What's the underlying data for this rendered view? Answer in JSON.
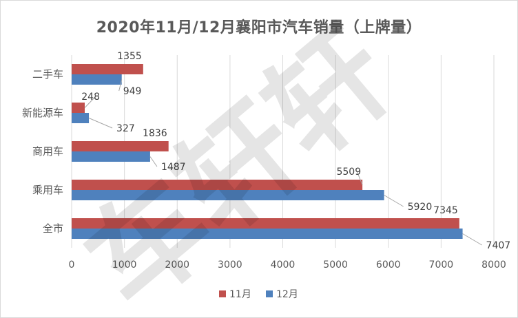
{
  "chart_data": {
    "type": "bar",
    "orientation": "horizontal",
    "title": "2020年11月/12月襄阳市汽车销量（上牌量）",
    "categories": [
      "二手车",
      "新能源车",
      "商用车",
      "乘用车",
      "全市"
    ],
    "series": [
      {
        "name": "11月",
        "color": "#c0504d",
        "values": [
          1355,
          248,
          1836,
          5509,
          7345
        ]
      },
      {
        "name": "12月",
        "color": "#4f81bd",
        "values": [
          949,
          327,
          1487,
          5920,
          7407
        ]
      }
    ],
    "xlim": [
      0,
      8000
    ],
    "xticks": [
      0,
      1000,
      2000,
      3000,
      4000,
      5000,
      6000,
      7000,
      8000
    ],
    "grid": true,
    "legend": "bottom",
    "watermark": "车轩轩"
  }
}
